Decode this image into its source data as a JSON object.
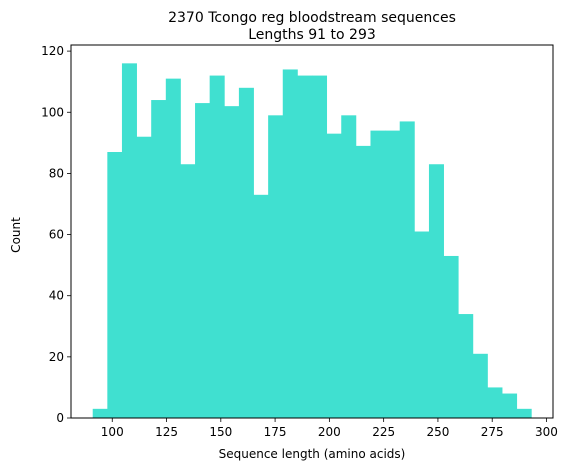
{
  "chart_data": {
    "type": "bar",
    "title": "2370 Tcongo reg bloodstream sequences",
    "subtitle": "Lengths 91 to 293",
    "xlabel": "Sequence length (amino acids)",
    "ylabel": "Count",
    "xlim": [
      81,
      303
    ],
    "ylim": [
      0,
      122
    ],
    "x_ticks": [
      100,
      125,
      150,
      175,
      200,
      225,
      250,
      275,
      300
    ],
    "y_ticks": [
      0,
      20,
      40,
      60,
      80,
      100,
      120
    ],
    "bin_start": 91,
    "bin_end": 293,
    "bin_count": 30,
    "values": [
      3,
      87,
      116,
      92,
      104,
      111,
      83,
      103,
      112,
      102,
      108,
      73,
      99,
      114,
      112,
      112,
      93,
      99,
      89,
      94,
      94,
      97,
      61,
      83,
      53,
      34,
      21,
      10,
      8,
      3
    ],
    "color": "#40e0d0",
    "grid": false,
    "legend": "none"
  }
}
